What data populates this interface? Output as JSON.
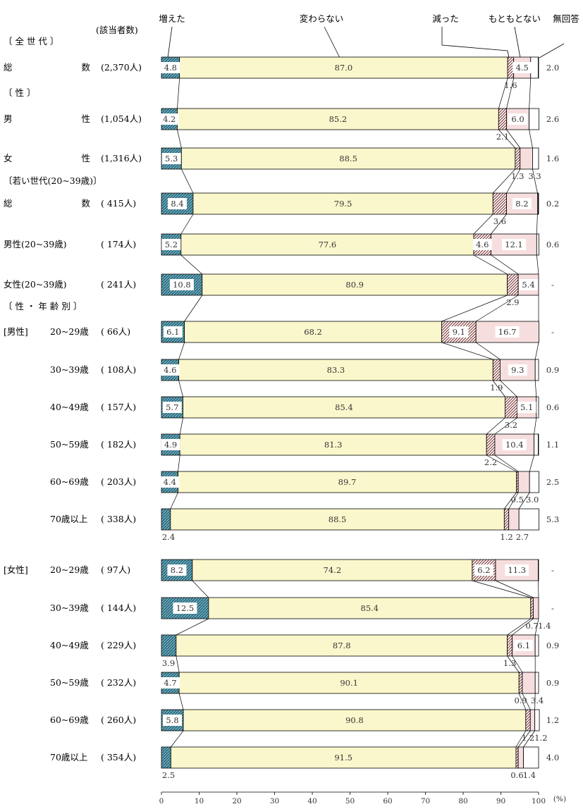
{
  "chart_data": {
    "type": "bar",
    "stacked": true,
    "orientation": "horizontal",
    "count_header": "(該当者数)",
    "legend": [
      "増えた",
      "変わらない",
      "減った",
      "もともとない",
      "無回答"
    ],
    "colors": {
      "increased": "#2e6e82",
      "unchanged": "#fbf7cc",
      "decreased": "#c8a0a0",
      "never": "#f7dede",
      "noanswer": "#ffffff"
    },
    "xlim": [
      0,
      100
    ],
    "x_ticks": [
      "0",
      "10",
      "20",
      "30",
      "40",
      "50",
      "60",
      "70",
      "80",
      "90",
      "100"
    ],
    "x_unit": "(%)",
    "sections": [
      "〔 全 世 代 〕",
      "〔 性 〕",
      "〔若い世代(20~39歳)〕",
      "〔 性 ・ 年 齢 別 〕"
    ],
    "rows": [
      {
        "label": "総 数",
        "group": "",
        "count": "(2,370人)",
        "values": [
          4.8,
          87.0,
          1.6,
          4.5,
          2.0
        ],
        "labels": [
          "4.8",
          "87.0",
          "1.6",
          "4.5",
          "2.0"
        ]
      },
      {
        "label": "男 性",
        "group": "",
        "count": "(1,054人)",
        "values": [
          4.2,
          85.2,
          2.1,
          6.0,
          2.6
        ],
        "labels": [
          "4.2",
          "85.2",
          "2.1",
          "6.0",
          "2.6"
        ]
      },
      {
        "label": "女 性",
        "group": "",
        "count": "(1,316人)",
        "values": [
          5.3,
          88.5,
          1.3,
          3.3,
          1.6
        ],
        "labels": [
          "5.3",
          "88.5",
          "1.3",
          "3.3",
          "1.6"
        ]
      },
      {
        "label": "総 数",
        "group": "",
        "count": "( 415人)",
        "values": [
          8.4,
          79.5,
          3.6,
          8.2,
          0.2
        ],
        "labels": [
          "8.4",
          "79.5",
          "3.6",
          "8.2",
          "0.2"
        ]
      },
      {
        "label": "男性(20~39歳)",
        "group": "",
        "count": "( 174人)",
        "values": [
          5.2,
          77.6,
          4.6,
          12.1,
          0.6
        ],
        "labels": [
          "5.2",
          "77.6",
          "4.6",
          "12.1",
          "0.6"
        ]
      },
      {
        "label": "女性(20~39歳)",
        "group": "",
        "count": "( 241人)",
        "values": [
          10.8,
          80.9,
          2.9,
          5.4,
          0
        ],
        "labels": [
          "10.8",
          "80.9",
          "2.9",
          "5.4",
          "-"
        ]
      },
      {
        "label": "20~29歳",
        "group": "[男性]",
        "count": "( 66人)",
        "values": [
          6.1,
          68.2,
          9.1,
          16.7,
          0
        ],
        "labels": [
          "6.1",
          "68.2",
          "9.1",
          "16.7",
          "-"
        ]
      },
      {
        "label": "30~39歳",
        "group": "",
        "count": "( 108人)",
        "values": [
          4.6,
          83.3,
          1.9,
          9.3,
          0.9
        ],
        "labels": [
          "4.6",
          "83.3",
          "1.9",
          "9.3",
          "0.9"
        ]
      },
      {
        "label": "40~49歳",
        "group": "",
        "count": "( 157人)",
        "values": [
          5.7,
          85.4,
          3.2,
          5.1,
          0.6
        ],
        "labels": [
          "5.7",
          "85.4",
          "3.2",
          "5.1",
          "0.6"
        ]
      },
      {
        "label": "50~59歳",
        "group": "",
        "count": "( 182人)",
        "values": [
          4.9,
          81.3,
          2.2,
          10.4,
          1.1
        ],
        "labels": [
          "4.9",
          "81.3",
          "2.2",
          "10.4",
          "1.1"
        ]
      },
      {
        "label": "60~69歳",
        "group": "",
        "count": "( 203人)",
        "values": [
          4.4,
          89.7,
          0.5,
          3.0,
          2.5
        ],
        "labels": [
          "4.4",
          "89.7",
          "0.5",
          "3.0",
          "2.5"
        ]
      },
      {
        "label": "70歳以上",
        "group": "",
        "count": "( 338人)",
        "values": [
          2.4,
          88.5,
          1.2,
          2.7,
          5.3
        ],
        "labels": [
          "2.4",
          "88.5",
          "1.2",
          "2.7",
          "5.3"
        ]
      },
      {
        "label": "20~29歳",
        "group": "[女性]",
        "count": "( 97人)",
        "values": [
          8.2,
          74.2,
          6.2,
          11.3,
          0
        ],
        "labels": [
          "8.2",
          "74.2",
          "6.2",
          "11.3",
          "-"
        ]
      },
      {
        "label": "30~39歳",
        "group": "",
        "count": "( 144人)",
        "values": [
          12.5,
          85.4,
          0.7,
          1.4,
          0
        ],
        "labels": [
          "12.5",
          "85.4",
          "0.7",
          "1.4",
          "-"
        ]
      },
      {
        "label": "40~49歳",
        "group": "",
        "count": "( 229人)",
        "values": [
          3.9,
          87.8,
          1.3,
          6.1,
          0.9
        ],
        "labels": [
          "3.9",
          "87.8",
          "1.3",
          "6.1",
          "0.9"
        ]
      },
      {
        "label": "50~59歳",
        "group": "",
        "count": "( 232人)",
        "values": [
          4.7,
          90.1,
          0.9,
          3.4,
          0.9
        ],
        "labels": [
          "4.7",
          "90.1",
          "0.9",
          "3.4",
          "0.9"
        ]
      },
      {
        "label": "60~69歳",
        "group": "",
        "count": "( 260人)",
        "values": [
          5.8,
          90.8,
          1.2,
          1.2,
          1.2
        ],
        "labels": [
          "5.8",
          "90.8",
          "1.2",
          "1.2",
          "1.2"
        ]
      },
      {
        "label": "70歳以上",
        "group": "",
        "count": "( 354人)",
        "values": [
          2.5,
          91.5,
          0.6,
          1.4,
          4.0
        ],
        "labels": [
          "2.5",
          "91.5",
          "0.6",
          "1.4",
          "4.0"
        ]
      }
    ]
  }
}
